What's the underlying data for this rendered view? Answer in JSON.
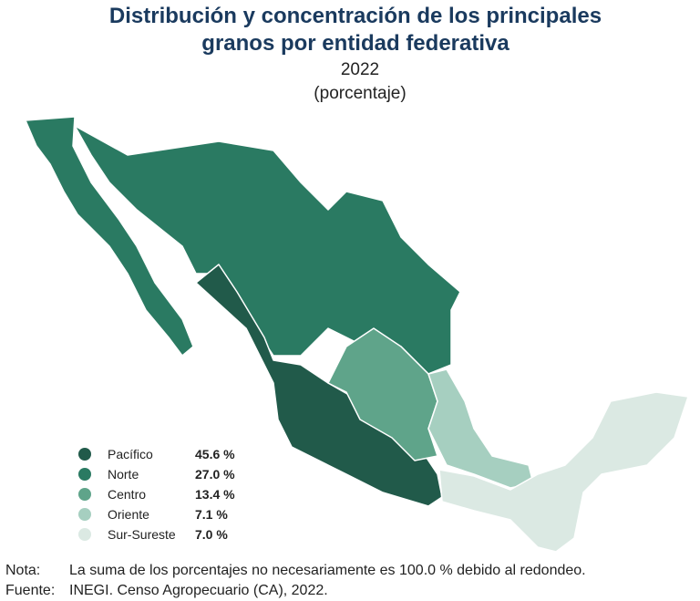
{
  "header": {
    "title_lines": [
      "Distribución y concentración de los principales",
      "granos por entidad federativa"
    ],
    "year": "2022",
    "unit": "(porcentaje)"
  },
  "legend": {
    "items": [
      {
        "name": "Pacífico",
        "value": "45.6 %",
        "color": "#215a4a"
      },
      {
        "name": "Norte",
        "value": "27.0 %",
        "color": "#2a7a62"
      },
      {
        "name": "Centro",
        "value": "13.4 %",
        "color": "#5fa48a"
      },
      {
        "name": "Oriente",
        "value": "7.1 %",
        "color": "#a6cfc0"
      },
      {
        "name": "Sur-Sureste",
        "value": "7.0 %",
        "color": "#dbe9e3"
      }
    ]
  },
  "footer": {
    "note_label": "Nota:",
    "note": "La suma de los porcentajes no necesariamente es 100.0 % debido al redondeo.",
    "source_label": "Fuente:",
    "source": "INEGI. Censo Agropecuario (CA), 2022."
  }
}
